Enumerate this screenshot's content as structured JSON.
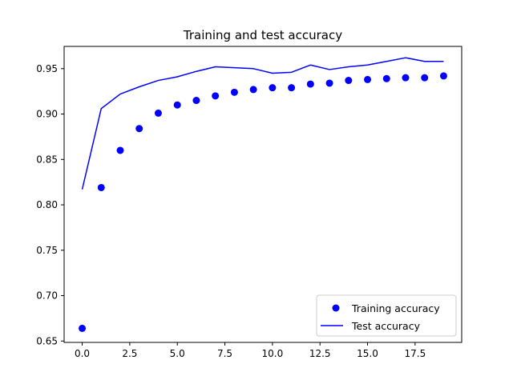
{
  "chart_data": {
    "type": "line",
    "title": "Training and test accuracy",
    "xlabel": "",
    "ylabel": "",
    "xlim": [
      -0.95,
      19.95
    ],
    "ylim": [
      0.6485,
      0.9745
    ],
    "xticks": [
      0.0,
      2.5,
      5.0,
      7.5,
      10.0,
      12.5,
      15.0,
      17.5
    ],
    "xtick_labels": [
      "0.0",
      "2.5",
      "5.0",
      "7.5",
      "10.0",
      "12.5",
      "15.0",
      "17.5"
    ],
    "yticks": [
      0.65,
      0.7,
      0.75,
      0.8,
      0.85,
      0.9,
      0.95
    ],
    "ytick_labels": [
      "0.65",
      "0.70",
      "0.75",
      "0.80",
      "0.85",
      "0.90",
      "0.95"
    ],
    "grid": false,
    "legend": {
      "placement": "bottom-right"
    },
    "x": [
      0,
      1,
      2,
      3,
      4,
      5,
      6,
      7,
      8,
      9,
      10,
      11,
      12,
      13,
      14,
      15,
      16,
      17,
      18,
      19
    ],
    "series": [
      {
        "name": "Training accuracy",
        "style": "scatter",
        "color": "#0000ff",
        "values": [
          0.664,
          0.819,
          0.86,
          0.884,
          0.901,
          0.91,
          0.915,
          0.92,
          0.924,
          0.927,
          0.929,
          0.929,
          0.933,
          0.934,
          0.937,
          0.938,
          0.939,
          0.94,
          0.94,
          0.942
        ]
      },
      {
        "name": "Test accuracy",
        "style": "line",
        "color": "#0000ff",
        "values": [
          0.817,
          0.906,
          0.922,
          0.93,
          0.937,
          0.941,
          0.947,
          0.952,
          0.951,
          0.95,
          0.945,
          0.946,
          0.954,
          0.949,
          0.952,
          0.954,
          0.958,
          0.962,
          0.958,
          0.958
        ]
      }
    ]
  }
}
